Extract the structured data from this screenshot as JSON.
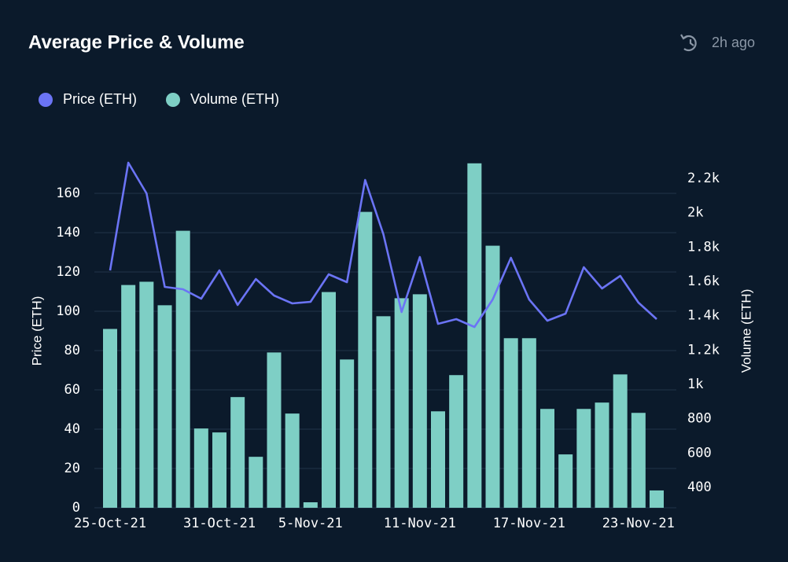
{
  "chart_data": {
    "type": "combo",
    "title": "Average Price & Volume",
    "updated": "2h ago",
    "categories": [
      "25-Oct-21",
      null,
      null,
      null,
      null,
      null,
      "31-Oct-21",
      null,
      null,
      null,
      null,
      "5-Nov-21",
      null,
      null,
      null,
      null,
      null,
      "11-Nov-21",
      null,
      null,
      null,
      null,
      null,
      "17-Nov-21",
      null,
      null,
      null,
      null,
      null,
      "23-Nov-21",
      null
    ],
    "series": [
      {
        "name": "Price (ETH)",
        "type": "line",
        "color": "#6b74f5",
        "axis": "y",
        "values": [
          120.8,
          175.6,
          160,
          112.4,
          111.2,
          106.4,
          120.8,
          103.2,
          116.4,
          108,
          104,
          104.8,
          118.8,
          114.8,
          166.8,
          139.2,
          99.6,
          127.6,
          93.6,
          96,
          92,
          106,
          127.2,
          106,
          95.2,
          98.8,
          122.4,
          111.6,
          118,
          104.4,
          96
        ]
      },
      {
        "name": "Volume (ETH)",
        "type": "bar",
        "color": "#7ecfc5",
        "axis": "y2",
        "values": [
          1323,
          1579,
          1598,
          1461,
          1895,
          743,
          720,
          926,
          578,
          1186,
          830,
          313,
          1538,
          1145,
          2005,
          1397,
          1502,
          1525,
          843,
          1054,
          2288,
          1808,
          1269,
          1269,
          857,
          592,
          857,
          894,
          1058,
          834,
          382
        ]
      }
    ],
    "ylabel": "Price (ETH)",
    "y2label": "Volume (ETH)",
    "ylim": [
      0,
      180
    ],
    "yticks": [
      0,
      20,
      40,
      60,
      80,
      100,
      120,
      140,
      160
    ],
    "y2lim": [
      281,
      2342
    ],
    "y2ticks": [
      400,
      600,
      800,
      {
        "value": 1000,
        "label": "1k"
      },
      {
        "value": 1200,
        "label": "1.2k"
      },
      {
        "value": 1400,
        "label": "1.4k"
      },
      {
        "value": 1600,
        "label": "1.6k"
      },
      {
        "value": 1800,
        "label": "1.8k"
      },
      {
        "value": 2000,
        "label": "2k"
      },
      {
        "value": 2200,
        "label": "2.2k"
      }
    ],
    "grid": true
  }
}
